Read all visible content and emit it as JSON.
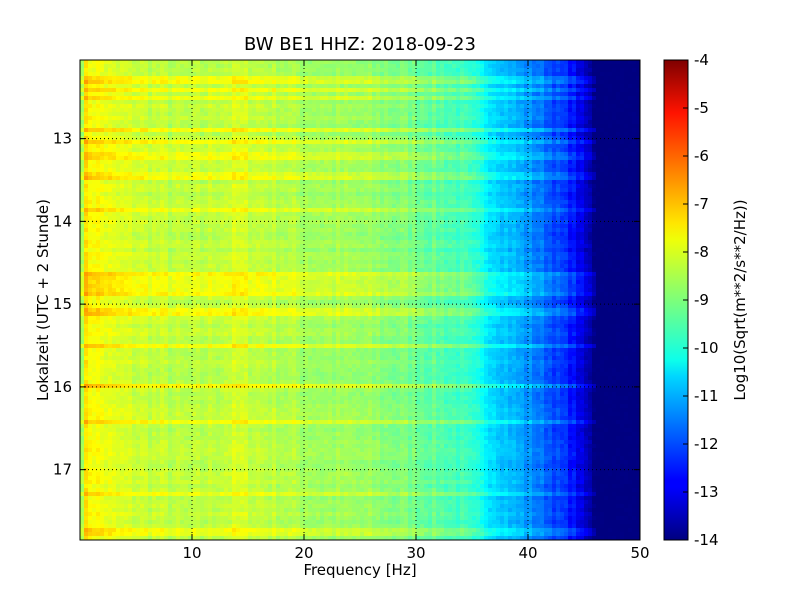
{
  "chart_data": {
    "type": "heatmap",
    "title": "BW BE1 HHZ: 2018-09-23",
    "xlabel": "Frequency [Hz]",
    "ylabel": "Lokalzeit (UTC + 2 Stunde)",
    "xlim": [
      0,
      50
    ],
    "ylim": [
      12.05,
      17.85
    ],
    "y_inverted": true,
    "x_ticks": [
      "10",
      "20",
      "30",
      "40",
      "50"
    ],
    "y_ticks": [
      "13",
      "14",
      "15",
      "16",
      "17"
    ],
    "grid": true,
    "colormap": "jet",
    "colorbar": {
      "label": "Log10(Sqrt(m**2/s**2/Hz))",
      "range": [
        -14,
        -4
      ],
      "ticks": [
        "-4",
        "-5",
        "-6",
        "-7",
        "-8",
        "-9",
        "-10",
        "-11",
        "-12",
        "-13",
        "-14"
      ]
    },
    "spectrum_profile": {
      "frequency_hz": [
        0,
        0.5,
        1.5,
        3,
        6,
        10,
        14,
        20,
        26,
        30,
        34,
        36,
        38,
        40,
        42,
        44,
        45.5,
        46,
        50
      ],
      "value": [
        -8.9,
        -7.6,
        -7.8,
        -8.1,
        -8.3,
        -8.5,
        -8.2,
        -8.6,
        -8.8,
        -9.1,
        -9.6,
        -10.2,
        -10.8,
        -11.3,
        -11.9,
        -12.6,
        -13.6,
        -14,
        -14
      ]
    },
    "bright_time_bands_hour": [
      12.3,
      12.4,
      12.5,
      12.9,
      13.05,
      13.2,
      13.45,
      13.85,
      14.65,
      14.75,
      14.85,
      15.1,
      15.5,
      16.0,
      16.42,
      17.3,
      17.75
    ]
  }
}
